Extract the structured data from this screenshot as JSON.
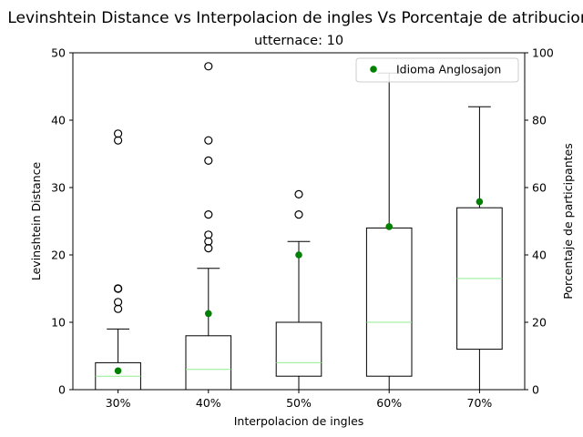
{
  "chart_data": {
    "type": "box",
    "title": "Levinshtein Distance vs Interpolacion de ingles Vs Porcentaje de atribucion",
    "subtitle": "utternace: 10",
    "xlabel": "Interpolacion de ingles",
    "ylabel_left": "Levinshtein Distance",
    "ylabel_right": "Porcentaje de participantes",
    "categories": [
      "30%",
      "40%",
      "50%",
      "60%",
      "70%"
    ],
    "ylim_left": [
      0,
      50
    ],
    "yticks_left": [
      "0",
      "10",
      "20",
      "30",
      "40",
      "50"
    ],
    "ylim_right": [
      0,
      100
    ],
    "yticks_right": [
      "0",
      "20",
      "40",
      "60",
      "80",
      "100"
    ],
    "boxes": [
      {
        "whisker_low": 0,
        "q1": 0,
        "median": 2,
        "q3": 4,
        "whisker_high": 9,
        "outliers": [
          12,
          13,
          15,
          15,
          15,
          37,
          38
        ]
      },
      {
        "whisker_low": 0,
        "q1": 0,
        "median": 3,
        "q3": 8,
        "whisker_high": 18,
        "outliers": [
          21,
          22,
          23,
          26,
          34,
          37,
          48
        ]
      },
      {
        "whisker_low": 0,
        "q1": 2,
        "median": 4,
        "q3": 10,
        "whisker_high": 22,
        "outliers": [
          26,
          29
        ]
      },
      {
        "whisker_low": 0,
        "q1": 2,
        "median": 10,
        "q3": 24,
        "whisker_high": 47,
        "outliers": []
      },
      {
        "whisker_low": 0,
        "q1": 6,
        "median": 16.5,
        "q3": 27,
        "whisker_high": 42,
        "outliers": []
      }
    ],
    "series": [
      {
        "name": "Idioma Anglosajon",
        "axis": "right",
        "values": [
          5.6,
          22.6,
          40.0,
          48.4,
          55.8
        ]
      }
    ],
    "legend": "top-right",
    "grid": false,
    "colors": {
      "box": "#000000",
      "median": "#90ee90",
      "series": "#008000"
    }
  }
}
